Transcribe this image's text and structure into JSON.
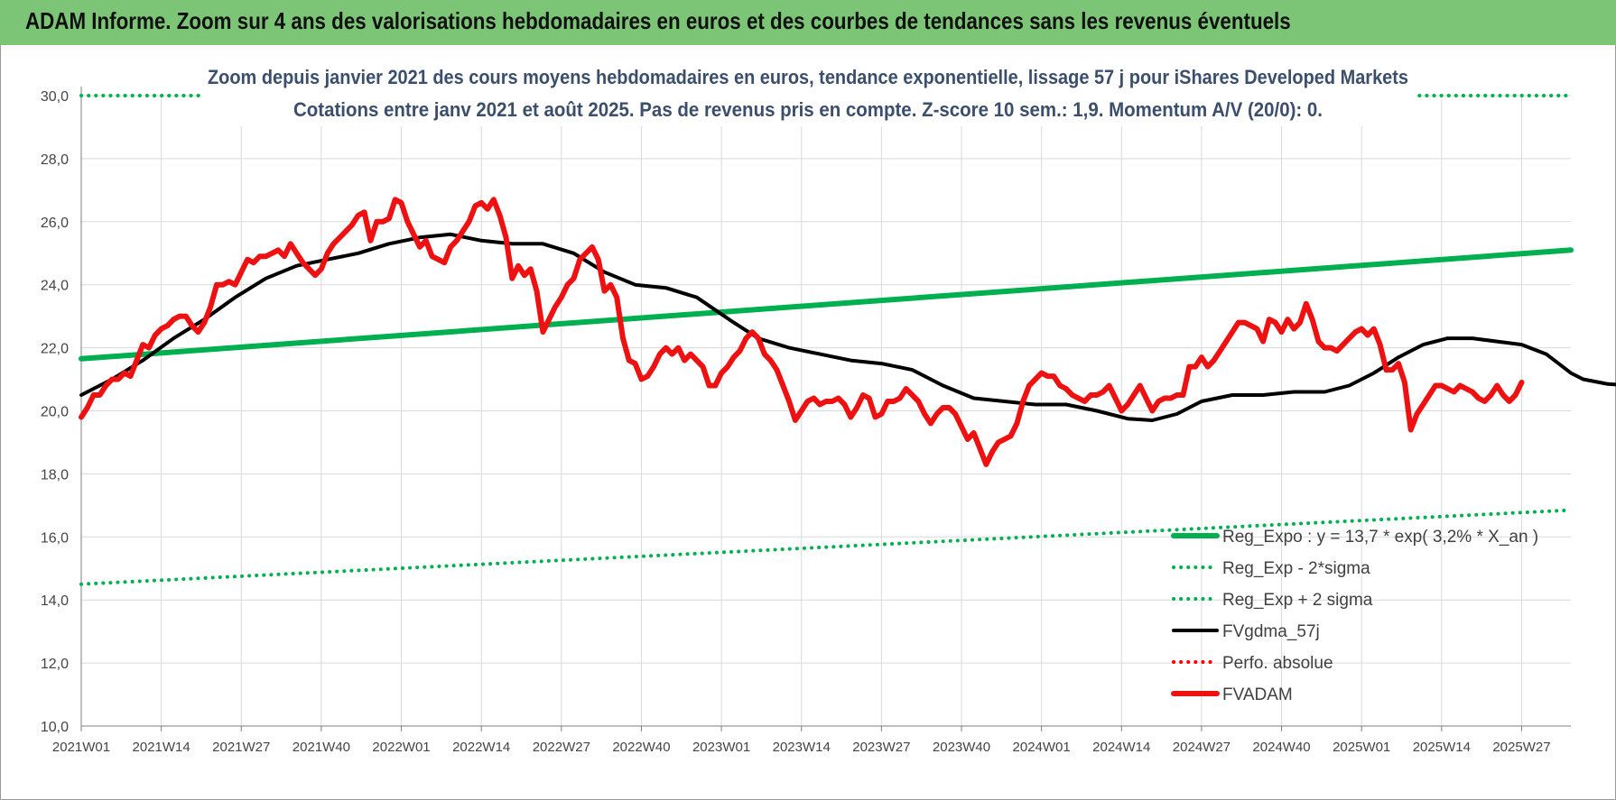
{
  "header": {
    "title": "ADAM Informe. Zoom sur 4 ans des valorisations hebdomadaires en euros et des courbes de tendances sans les revenus éventuels"
  },
  "chart_data": {
    "type": "line",
    "subtitle_lines": [
      "Zoom depuis janvier 2021 des cours moyens hebdomadaires en euros, tendance exponentielle, lissage 57 j pour iShares Developed Markets",
      "Cotations entre janv 2021 et août 2025. Pas de revenus pris en compte. Z-score 10 sem.: 1,9. Momentum A/V (20/0): 0."
    ],
    "x_tick_labels": [
      "2021W01",
      "2021W14",
      "2021W27",
      "2021W40",
      "2022W01",
      "2022W14",
      "2022W27",
      "2022W40",
      "2023W01",
      "2023W14",
      "2023W27",
      "2023W40",
      "2024W01",
      "2024W14",
      "2024W27",
      "2024W40",
      "2025W01",
      "2025W14",
      "2025W27"
    ],
    "y_tick_labels": [
      "10,0",
      "12,0",
      "14,0",
      "16,0",
      "18,0",
      "20,0",
      "22,0",
      "24,0",
      "26,0",
      "28,0",
      "30,0"
    ],
    "ylim": [
      10,
      30
    ],
    "x_range_weeks": [
      0,
      242
    ],
    "grid": true,
    "legend_position": "bottom-right",
    "series": [
      {
        "name": "Reg_Expo : y = 13,7 * exp( 3,2% *  X_an )",
        "color": "#00b050",
        "style": "solid-thick",
        "points": [
          [
            0,
            21.65
          ],
          [
            242,
            25.1
          ]
        ]
      },
      {
        "name": "Reg_Exp - 2*sigma",
        "color": "#00b050",
        "style": "dotted",
        "points": [
          [
            0,
            14.5
          ],
          [
            242,
            16.85
          ]
        ]
      },
      {
        "name": "Reg_Exp + 2 sigma",
        "color": "#00b050",
        "style": "dotted",
        "points": [
          [
            0,
            30.0
          ],
          [
            242,
            30.0
          ]
        ]
      },
      {
        "name": "FVgdma_57j",
        "color": "#000000",
        "style": "solid",
        "points": [
          [
            0,
            20.5
          ],
          [
            5,
            21.0
          ],
          [
            10,
            21.6
          ],
          [
            15,
            22.3
          ],
          [
            20,
            22.9
          ],
          [
            25,
            23.6
          ],
          [
            30,
            24.2
          ],
          [
            35,
            24.6
          ],
          [
            40,
            24.8
          ],
          [
            45,
            25.0
          ],
          [
            50,
            25.3
          ],
          [
            55,
            25.5
          ],
          [
            60,
            25.6
          ],
          [
            65,
            25.4
          ],
          [
            70,
            25.3
          ],
          [
            75,
            25.3
          ],
          [
            80,
            25.0
          ],
          [
            85,
            24.4
          ],
          [
            90,
            24.0
          ],
          [
            95,
            23.9
          ],
          [
            100,
            23.6
          ],
          [
            103,
            23.2
          ],
          [
            106,
            22.8
          ],
          [
            110,
            22.3
          ],
          [
            115,
            22.0
          ],
          [
            120,
            21.8
          ],
          [
            125,
            21.6
          ],
          [
            130,
            21.5
          ],
          [
            135,
            21.3
          ],
          [
            140,
            20.8
          ],
          [
            145,
            20.4
          ],
          [
            150,
            20.3
          ],
          [
            155,
            20.2
          ],
          [
            160,
            20.2
          ],
          [
            165,
            20.0
          ],
          [
            170,
            19.75
          ],
          [
            174,
            19.7
          ],
          [
            178,
            19.9
          ],
          [
            182,
            20.3
          ],
          [
            187,
            20.5
          ],
          [
            192,
            20.5
          ],
          [
            197,
            20.6
          ],
          [
            202,
            20.6
          ],
          [
            206,
            20.8
          ],
          [
            210,
            21.2
          ],
          [
            214,
            21.7
          ],
          [
            218,
            22.1
          ],
          [
            222,
            22.3
          ],
          [
            226,
            22.3
          ],
          [
            230,
            22.2
          ],
          [
            234,
            22.1
          ],
          [
            238,
            21.8
          ],
          [
            240,
            21.5
          ],
          [
            242,
            21.2
          ],
          [
            244,
            21.0
          ],
          [
            248,
            20.85
          ],
          [
            252,
            20.8
          ],
          [
            256,
            20.7
          ],
          [
            262,
            20.8
          ]
        ]
      },
      {
        "name": "Perfo. absolue",
        "color": "#ff0000",
        "style": "dotted",
        "points": []
      },
      {
        "name": "FVADAM",
        "color": "#ee1111",
        "style": "solid-thick",
        "points": [
          [
            0,
            19.8
          ],
          [
            1,
            20.1
          ],
          [
            2,
            20.5
          ],
          [
            3,
            20.5
          ],
          [
            4,
            20.8
          ],
          [
            5,
            21.0
          ],
          [
            6,
            21.0
          ],
          [
            7,
            21.2
          ],
          [
            8,
            21.1
          ],
          [
            9,
            21.6
          ],
          [
            10,
            22.1
          ],
          [
            11,
            22.0
          ],
          [
            12,
            22.4
          ],
          [
            13,
            22.6
          ],
          [
            14,
            22.7
          ],
          [
            15,
            22.9
          ],
          [
            16,
            23.0
          ],
          [
            17,
            23.0
          ],
          [
            18,
            22.7
          ],
          [
            19,
            22.5
          ],
          [
            20,
            22.8
          ],
          [
            21,
            23.3
          ],
          [
            22,
            24.0
          ],
          [
            23,
            24.0
          ],
          [
            24,
            24.1
          ],
          [
            25,
            24.0
          ],
          [
            26,
            24.4
          ],
          [
            27,
            24.8
          ],
          [
            28,
            24.7
          ],
          [
            29,
            24.9
          ],
          [
            30,
            24.9
          ],
          [
            31,
            25.0
          ],
          [
            32,
            25.1
          ],
          [
            33,
            24.9
          ],
          [
            34,
            25.3
          ],
          [
            35,
            25.0
          ],
          [
            36,
            24.7
          ],
          [
            37,
            24.5
          ],
          [
            38,
            24.3
          ],
          [
            39,
            24.5
          ],
          [
            40,
            25.0
          ],
          [
            41,
            25.3
          ],
          [
            42,
            25.5
          ],
          [
            43,
            25.7
          ],
          [
            44,
            25.9
          ],
          [
            45,
            26.2
          ],
          [
            46,
            26.3
          ],
          [
            47,
            25.4
          ],
          [
            48,
            26.0
          ],
          [
            49,
            26.0
          ],
          [
            50,
            26.1
          ],
          [
            51,
            26.7
          ],
          [
            52,
            26.6
          ],
          [
            53,
            26.0
          ],
          [
            54,
            25.6
          ],
          [
            55,
            25.2
          ],
          [
            56,
            25.4
          ],
          [
            57,
            24.9
          ],
          [
            58,
            24.8
          ],
          [
            59,
            24.7
          ],
          [
            60,
            25.2
          ],
          [
            61,
            25.4
          ],
          [
            62,
            25.7
          ],
          [
            63,
            26.0
          ],
          [
            64,
            26.5
          ],
          [
            65,
            26.6
          ],
          [
            66,
            26.4
          ],
          [
            67,
            26.7
          ],
          [
            68,
            26.2
          ],
          [
            69,
            25.5
          ],
          [
            70,
            24.2
          ],
          [
            71,
            24.6
          ],
          [
            72,
            24.3
          ],
          [
            73,
            24.5
          ],
          [
            74,
            23.8
          ],
          [
            75,
            22.5
          ],
          [
            76,
            22.9
          ],
          [
            77,
            23.3
          ],
          [
            78,
            23.6
          ],
          [
            79,
            24.0
          ],
          [
            80,
            24.2
          ],
          [
            81,
            24.8
          ],
          [
            82,
            25.0
          ],
          [
            83,
            25.2
          ],
          [
            84,
            24.8
          ],
          [
            85,
            23.8
          ],
          [
            86,
            24.0
          ],
          [
            87,
            23.6
          ],
          [
            88,
            22.3
          ],
          [
            89,
            21.6
          ],
          [
            90,
            21.5
          ],
          [
            91,
            21.0
          ],
          [
            92,
            21.1
          ],
          [
            93,
            21.4
          ],
          [
            94,
            21.8
          ],
          [
            95,
            22.0
          ],
          [
            96,
            21.8
          ],
          [
            97,
            22.0
          ],
          [
            98,
            21.6
          ],
          [
            99,
            21.8
          ],
          [
            100,
            21.6
          ],
          [
            101,
            21.4
          ],
          [
            102,
            20.8
          ],
          [
            103,
            20.8
          ],
          [
            104,
            21.2
          ],
          [
            105,
            21.4
          ],
          [
            106,
            21.7
          ],
          [
            107,
            21.9
          ],
          [
            108,
            22.3
          ],
          [
            109,
            22.5
          ],
          [
            110,
            22.3
          ],
          [
            111,
            21.8
          ],
          [
            112,
            21.6
          ],
          [
            113,
            21.3
          ],
          [
            114,
            20.8
          ],
          [
            115,
            20.3
          ],
          [
            116,
            19.7
          ],
          [
            117,
            20.0
          ],
          [
            118,
            20.3
          ],
          [
            119,
            20.4
          ],
          [
            120,
            20.2
          ],
          [
            121,
            20.3
          ],
          [
            122,
            20.3
          ],
          [
            123,
            20.4
          ],
          [
            124,
            20.2
          ],
          [
            125,
            19.8
          ],
          [
            126,
            20.1
          ],
          [
            127,
            20.5
          ],
          [
            128,
            20.4
          ],
          [
            129,
            19.8
          ],
          [
            130,
            19.9
          ],
          [
            131,
            20.3
          ],
          [
            132,
            20.3
          ],
          [
            133,
            20.4
          ],
          [
            134,
            20.7
          ],
          [
            135,
            20.5
          ],
          [
            136,
            20.3
          ],
          [
            137,
            19.9
          ],
          [
            138,
            19.6
          ],
          [
            139,
            19.9
          ],
          [
            140,
            20.1
          ],
          [
            141,
            20.1
          ],
          [
            142,
            19.9
          ],
          [
            143,
            19.5
          ],
          [
            144,
            19.1
          ],
          [
            145,
            19.3
          ],
          [
            146,
            18.8
          ],
          [
            147,
            18.3
          ],
          [
            148,
            18.7
          ],
          [
            149,
            19.0
          ],
          [
            150,
            19.1
          ],
          [
            151,
            19.2
          ],
          [
            152,
            19.6
          ],
          [
            153,
            20.3
          ],
          [
            154,
            20.8
          ],
          [
            155,
            21.0
          ],
          [
            156,
            21.2
          ],
          [
            157,
            21.1
          ],
          [
            158,
            21.1
          ],
          [
            159,
            20.8
          ],
          [
            160,
            20.7
          ],
          [
            161,
            20.5
          ],
          [
            162,
            20.4
          ],
          [
            163,
            20.3
          ],
          [
            164,
            20.5
          ],
          [
            165,
            20.5
          ],
          [
            166,
            20.6
          ],
          [
            167,
            20.8
          ],
          [
            168,
            20.4
          ],
          [
            169,
            20.0
          ],
          [
            170,
            20.2
          ],
          [
            171,
            20.5
          ],
          [
            172,
            20.8
          ],
          [
            173,
            20.4
          ],
          [
            174,
            20.0
          ],
          [
            175,
            20.3
          ],
          [
            176,
            20.4
          ],
          [
            177,
            20.4
          ],
          [
            178,
            20.5
          ],
          [
            179,
            20.5
          ],
          [
            180,
            21.4
          ],
          [
            181,
            21.4
          ],
          [
            182,
            21.7
          ],
          [
            183,
            21.4
          ],
          [
            184,
            21.6
          ],
          [
            185,
            21.9
          ],
          [
            186,
            22.2
          ],
          [
            187,
            22.5
          ],
          [
            188,
            22.8
          ],
          [
            189,
            22.8
          ],
          [
            190,
            22.7
          ],
          [
            191,
            22.6
          ],
          [
            192,
            22.2
          ],
          [
            193,
            22.9
          ],
          [
            194,
            22.8
          ],
          [
            195,
            22.5
          ],
          [
            196,
            22.9
          ],
          [
            197,
            22.6
          ],
          [
            198,
            22.8
          ],
          [
            199,
            23.4
          ],
          [
            200,
            22.9
          ],
          [
            201,
            22.2
          ],
          [
            202,
            22.0
          ],
          [
            203,
            22.0
          ],
          [
            204,
            21.9
          ],
          [
            205,
            22.1
          ],
          [
            206,
            22.3
          ],
          [
            207,
            22.5
          ],
          [
            208,
            22.6
          ],
          [
            209,
            22.4
          ],
          [
            210,
            22.6
          ],
          [
            211,
            22.1
          ],
          [
            212,
            21.3
          ],
          [
            213,
            21.3
          ],
          [
            214,
            21.5
          ],
          [
            215,
            20.9
          ],
          [
            216,
            19.4
          ],
          [
            217,
            19.9
          ],
          [
            218,
            20.2
          ],
          [
            219,
            20.5
          ],
          [
            220,
            20.8
          ],
          [
            221,
            20.8
          ],
          [
            222,
            20.7
          ],
          [
            223,
            20.6
          ],
          [
            224,
            20.8
          ],
          [
            225,
            20.7
          ],
          [
            226,
            20.6
          ],
          [
            227,
            20.4
          ],
          [
            228,
            20.3
          ],
          [
            229,
            20.5
          ],
          [
            230,
            20.8
          ],
          [
            231,
            20.5
          ],
          [
            232,
            20.3
          ],
          [
            233,
            20.5
          ],
          [
            234,
            20.9
          ]
        ]
      }
    ]
  }
}
